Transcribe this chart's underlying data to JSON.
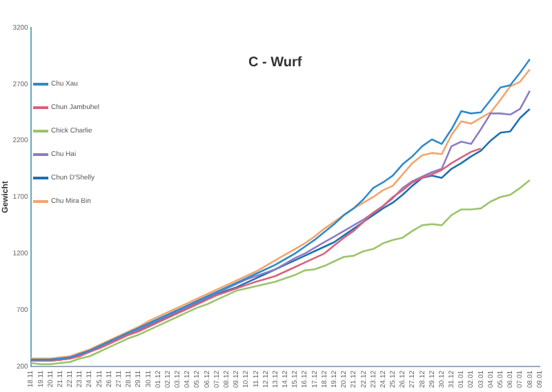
{
  "chart_data": {
    "type": "line",
    "title": "C - Wurf",
    "ylabel": "Gewicht",
    "categories": [
      "18.11",
      "19.11",
      "20.11",
      "21.11",
      "22.11",
      "23.11",
      "24.11",
      "25.11",
      "26.11",
      "27.11",
      "28.11",
      "29.11",
      "30.11",
      "01.12",
      "02.12",
      "03.12",
      "04.12",
      "05.12",
      "06.12",
      "07.12",
      "08.12",
      "09.12",
      "10.12",
      "11.12",
      "12.12",
      "13.12",
      "14.12",
      "15.12",
      "16.12",
      "17.12",
      "18.12",
      "19.12",
      "20.12",
      "21.12",
      "22.12",
      "23.12",
      "24.12",
      "25.12",
      "26.12",
      "27.12",
      "28.12",
      "29.12",
      "30.12",
      "31.12",
      "01.01",
      "02.01",
      "03.01",
      "04.01",
      "05.01",
      "06.01",
      "07.01",
      "08.01",
      "09.01"
    ],
    "series": [
      {
        "name": "Chu Xau",
        "color": "#2e8bc9",
        "values": [
          260,
          260,
          260,
          270,
          280,
          310,
          340,
          380,
          420,
          460,
          500,
          540,
          580,
          620,
          660,
          700,
          740,
          780,
          820,
          860,
          900,
          940,
          980,
          1020,
          1060,
          1100,
          1150,
          1200,
          1260,
          1320,
          1390,
          1460,
          1540,
          1600,
          1680,
          1780,
          1830,
          1890,
          1990,
          2060,
          2150,
          2210,
          2170,
          2300,
          2460,
          2440,
          2450,
          2560,
          2670,
          2690,
          2800,
          2920,
          null
        ]
      },
      {
        "name": "Chun Jambuhel",
        "color": "#d9627a",
        "values": [
          250,
          250,
          250,
          260,
          270,
          290,
          330,
          360,
          400,
          440,
          480,
          510,
          550,
          590,
          630,
          670,
          710,
          750,
          790,
          830,
          860,
          890,
          920,
          950,
          975,
          1000,
          1040,
          1080,
          1120,
          1160,
          1200,
          1270,
          1340,
          1400,
          1480,
          1560,
          1620,
          1700,
          1760,
          1830,
          1870,
          1900,
          1940,
          2000,
          2050,
          2100,
          2130,
          null,
          null,
          null,
          null,
          null,
          null
        ]
      },
      {
        "name": "Chick Charlie",
        "color": "#9bc46a",
        "values": [
          230,
          220,
          220,
          230,
          240,
          270,
          290,
          330,
          370,
          410,
          450,
          480,
          520,
          560,
          600,
          640,
          680,
          720,
          750,
          790,
          830,
          870,
          890,
          910,
          930,
          950,
          980,
          1010,
          1050,
          1060,
          1090,
          1130,
          1170,
          1180,
          1220,
          1240,
          1290,
          1320,
          1340,
          1400,
          1450,
          1460,
          1450,
          1540,
          1590,
          1590,
          1600,
          1660,
          1700,
          1720,
          1780,
          1850,
          null
        ]
      },
      {
        "name": "Chu Hai",
        "color": "#8e7cc3",
        "values": [
          250,
          250,
          260,
          260,
          280,
          300,
          330,
          370,
          410,
          450,
          490,
          530,
          570,
          610,
          650,
          690,
          730,
          770,
          810,
          850,
          890,
          930,
          970,
          1000,
          1030,
          1060,
          1110,
          1160,
          1200,
          1250,
          1300,
          1350,
          1400,
          1450,
          1500,
          1560,
          1620,
          1690,
          1780,
          1840,
          1880,
          1920,
          1950,
          2150,
          2190,
          2170,
          2300,
          2440,
          2440,
          2430,
          2480,
          2640,
          null
        ]
      },
      {
        "name": "Chun D'Shelly",
        "color": "#1f6fb2",
        "values": [
          250,
          250,
          250,
          260,
          270,
          300,
          330,
          370,
          410,
          450,
          490,
          520,
          560,
          600,
          640,
          680,
          720,
          760,
          800,
          840,
          870,
          900,
          940,
          980,
          1020,
          1060,
          1100,
          1140,
          1180,
          1220,
          1260,
          1300,
          1360,
          1420,
          1480,
          1540,
          1600,
          1650,
          1720,
          1800,
          1870,
          1890,
          1870,
          1950,
          2000,
          2060,
          2110,
          2200,
          2270,
          2280,
          2400,
          2480,
          null
        ]
      },
      {
        "name": "Chu Mira Bin",
        "color": "#f4a46a",
        "values": [
          270,
          270,
          270,
          280,
          290,
          320,
          350,
          390,
          430,
          470,
          510,
          550,
          600,
          640,
          680,
          720,
          760,
          800,
          840,
          880,
          920,
          960,
          1000,
          1040,
          1090,
          1140,
          1190,
          1240,
          1290,
          1350,
          1420,
          1480,
          1540,
          1600,
          1650,
          1700,
          1760,
          1800,
          1900,
          2000,
          2070,
          2090,
          2080,
          2250,
          2370,
          2350,
          2400,
          2450,
          2560,
          2680,
          2720,
          2830,
          null
        ]
      }
    ],
    "ylim": [
      200,
      3200
    ],
    "yticks": [
      200,
      700,
      1200,
      1700,
      2200,
      2700,
      3200
    ],
    "grid": false,
    "legend": "top left",
    "marker": "none",
    "line_style": "solid"
  }
}
